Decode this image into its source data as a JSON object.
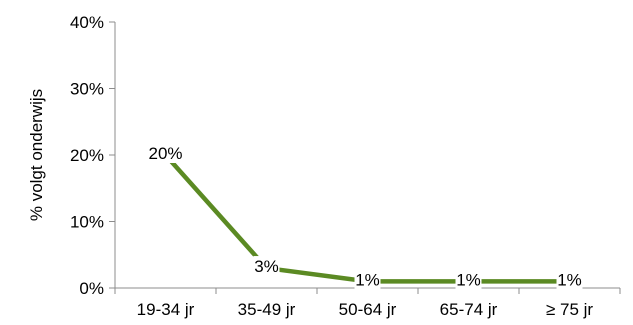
{
  "chart_data": {
    "type": "line",
    "title": "",
    "xlabel": "",
    "ylabel": "% volgt onderwijs",
    "categories": [
      "19-34 jr",
      "35-49 jr",
      "50-64 jr",
      "65-74 jr",
      "≥ 75 jr"
    ],
    "series": [
      {
        "values": [
          20,
          3,
          1,
          1,
          1
        ],
        "labels": [
          "20%",
          "3%",
          "1%",
          "1%",
          "1%"
        ],
        "color": "#5b8a23"
      }
    ],
    "ylim": [
      0,
      40
    ],
    "yticks": [
      0,
      10,
      20,
      30,
      40
    ],
    "ytick_labels": [
      "0%",
      "10%",
      "20%",
      "30%",
      "40%"
    ],
    "grid": false,
    "legend": "none"
  }
}
